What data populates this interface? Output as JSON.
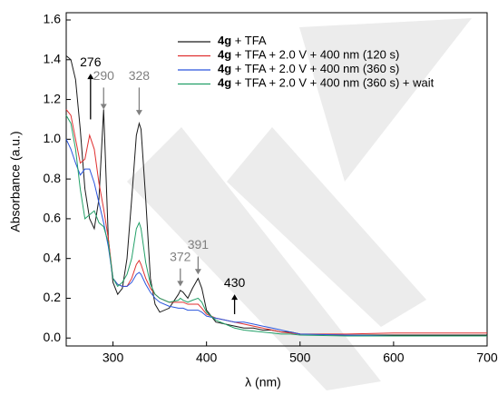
{
  "chart_data": {
    "type": "line",
    "xlabel": "λ (nm)",
    "ylabel": "Absorbance (a.u.)",
    "x": [
      250,
      255,
      260,
      265,
      270,
      275,
      280,
      285,
      290,
      295,
      300,
      305,
      310,
      315,
      320,
      325,
      328,
      330,
      335,
      340,
      345,
      350,
      360,
      370,
      372,
      375,
      380,
      385,
      391,
      395,
      400,
      410,
      420,
      430,
      440,
      450,
      460,
      470,
      480,
      490,
      500,
      550,
      600,
      650,
      700
    ],
    "series": [
      {
        "name": "4g + TFA",
        "color": "#1a1a1a",
        "values": [
          1.42,
          1.4,
          1.3,
          1.05,
          0.75,
          0.6,
          0.55,
          0.7,
          1.15,
          0.5,
          0.28,
          0.22,
          0.25,
          0.4,
          0.7,
          1.02,
          1.08,
          1.05,
          0.7,
          0.3,
          0.17,
          0.13,
          0.15,
          0.22,
          0.24,
          0.23,
          0.2,
          0.25,
          0.3,
          0.25,
          0.14,
          0.08,
          0.07,
          0.06,
          0.05,
          0.05,
          0.04,
          0.04,
          0.03,
          0.03,
          0.02,
          0.015,
          0.015,
          0.015,
          0.015
        ]
      },
      {
        "name": "4g + TFA + 2.0 V + 400 nm (120 s)",
        "color": "#e03030",
        "values": [
          1.15,
          1.12,
          1.0,
          0.88,
          0.9,
          1.02,
          0.95,
          0.78,
          0.65,
          0.5,
          0.3,
          0.27,
          0.26,
          0.26,
          0.3,
          0.37,
          0.39,
          0.37,
          0.3,
          0.25,
          0.22,
          0.2,
          0.18,
          0.18,
          0.18,
          0.18,
          0.17,
          0.17,
          0.17,
          0.15,
          0.12,
          0.1,
          0.09,
          0.08,
          0.07,
          0.06,
          0.05,
          0.04,
          0.03,
          0.025,
          0.02,
          0.02,
          0.025,
          0.025,
          0.025
        ]
      },
      {
        "name": "4g + TFA + 2.0 V + 400 nm (360 s)",
        "color": "#2a55dd",
        "values": [
          1.0,
          0.95,
          0.88,
          0.82,
          0.85,
          0.85,
          0.78,
          0.68,
          0.58,
          0.46,
          0.3,
          0.27,
          0.26,
          0.26,
          0.28,
          0.32,
          0.33,
          0.32,
          0.27,
          0.23,
          0.2,
          0.18,
          0.16,
          0.15,
          0.15,
          0.15,
          0.14,
          0.14,
          0.14,
          0.13,
          0.11,
          0.1,
          0.09,
          0.08,
          0.08,
          0.07,
          0.06,
          0.05,
          0.04,
          0.03,
          0.02,
          0.015,
          0.01,
          0.01,
          0.01
        ]
      },
      {
        "name": "4g + TFA + 2.0 V + 400 nm (360 s) + wait",
        "color": "#22a068",
        "values": [
          1.12,
          1.08,
          0.95,
          0.75,
          0.6,
          0.62,
          0.64,
          0.58,
          0.56,
          0.48,
          0.3,
          0.26,
          0.28,
          0.32,
          0.4,
          0.55,
          0.58,
          0.55,
          0.38,
          0.27,
          0.22,
          0.2,
          0.18,
          0.19,
          0.2,
          0.19,
          0.18,
          0.19,
          0.2,
          0.18,
          0.13,
          0.09,
          0.07,
          0.05,
          0.04,
          0.035,
          0.03,
          0.025,
          0.02,
          0.02,
          0.015,
          0.01,
          0.01,
          0.01,
          0.01
        ]
      }
    ],
    "xlim": [
      250,
      700
    ],
    "ylim": [
      -0.04,
      1.6
    ],
    "xticks": [
      300,
      400,
      500,
      600,
      700
    ],
    "yticks": [
      {
        "value": 0,
        "label": "0.0"
      },
      0.2,
      0.4,
      0.6,
      0.8,
      {
        "value": 1,
        "label": "1.0"
      },
      1.2,
      1.4,
      1.6
    ],
    "legend": "top-right",
    "annotations": [
      {
        "label": "276",
        "x": 276,
        "y_from": 1.1,
        "y_to": 1.33,
        "color": "#000000"
      },
      {
        "label": "290",
        "x": 290,
        "y_from": 1.26,
        "y_to": 1.15,
        "color": "#808080"
      },
      {
        "label": "328",
        "x": 328,
        "y_from": 1.26,
        "y_to": 1.12,
        "color": "#808080"
      },
      {
        "label": "372",
        "x": 372,
        "y_from": 0.35,
        "y_to": 0.26,
        "color": "#808080"
      },
      {
        "label": "391",
        "x": 391,
        "y_from": 0.41,
        "y_to": 0.32,
        "color": "#808080"
      },
      {
        "label": "430",
        "x": 430,
        "y_from": 0.12,
        "y_to": 0.22,
        "color": "#000000"
      }
    ]
  }
}
